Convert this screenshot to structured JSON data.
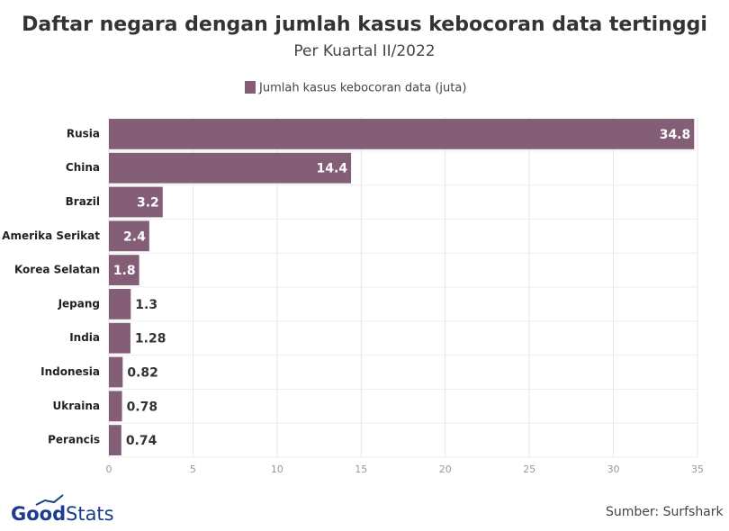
{
  "chart_data": {
    "type": "barh",
    "title": "Daftar negara dengan jumlah kasus kebocoran data tertinggi",
    "subtitle": "Per Kuartal II/2022",
    "categories": [
      "Rusia",
      "China",
      "Brazil",
      "Amerika Serikat",
      "Korea Selatan",
      "Jepang",
      "India",
      "Indonesia",
      "Ukraina",
      "Perancis"
    ],
    "series": [
      {
        "name": "Jumlah kasus kebocoran data (juta)",
        "color": "#845d77",
        "values": [
          34.8,
          14.4,
          3.2,
          2.4,
          1.8,
          1.3,
          1.28,
          0.82,
          0.78,
          0.74
        ]
      }
    ],
    "xlim": [
      0,
      35
    ],
    "xticks": [
      0,
      5,
      10,
      15,
      20,
      25,
      30,
      35
    ],
    "grid": true,
    "source": "Sumber: Surfshark"
  },
  "logo": {
    "first": "Good",
    "second": "Stats"
  }
}
